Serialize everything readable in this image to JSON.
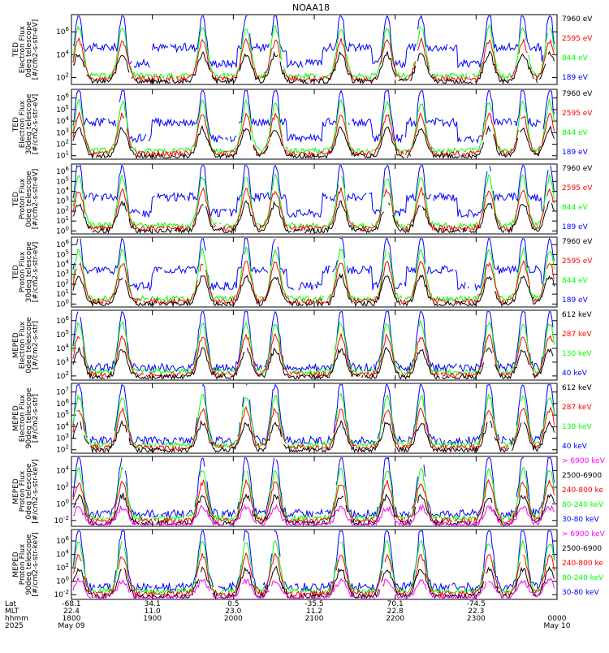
{
  "title": "NOAA18",
  "colors": {
    "black": "#000000",
    "red": "#ff0000",
    "green": "#00ff00",
    "blue": "#0000ff",
    "magenta": "#ff00ff"
  },
  "chart_data": [
    {
      "type": "line",
      "ylabel": [
        "TED",
        "Electron Flux",
        "0deg telescope",
        "[#/cm2-s-str-eV]"
      ],
      "yscale": "log",
      "ytick_labels": [
        "10^2",
        "10^4",
        "10^6"
      ],
      "legend": [
        "7960 eV",
        "2595 eV",
        "844 eV",
        "189 eV"
      ],
      "legend_colors": [
        "#000000",
        "#ff0000",
        "#00ff00",
        "#0000ff"
      ]
    },
    {
      "type": "line",
      "ylabel": [
        "TED",
        "Electron Flux",
        "30deg telescope",
        "[#/cm2-s-str-eV]"
      ],
      "yscale": "log",
      "ytick_labels": [
        "10^1",
        "10^2",
        "10^3",
        "10^4",
        "10^5",
        "10^6"
      ],
      "legend": [
        "7960 eV",
        "2595 eV",
        "844 eV",
        "189 eV"
      ],
      "legend_colors": [
        "#000000",
        "#ff0000",
        "#00ff00",
        "#0000ff"
      ]
    },
    {
      "type": "line",
      "ylabel": [
        "TED",
        "Proton Flux",
        "0deg telescope",
        "[#/cm2-s-str-eV]"
      ],
      "yscale": "log",
      "ytick_labels": [
        "10^0",
        "10^1",
        "10^2",
        "10^3",
        "10^4",
        "10^5",
        "10^6"
      ],
      "legend": [
        "7960 eV",
        "2595 eV",
        "844 eV",
        "189 eV"
      ],
      "legend_colors": [
        "#000000",
        "#ff0000",
        "#00ff00",
        "#0000ff"
      ]
    },
    {
      "type": "line",
      "ylabel": [
        "TED",
        "Proton Flux",
        "30deg telescope",
        "[#/cm2-s-str-eV]"
      ],
      "yscale": "log",
      "ytick_labels": [
        "10^0",
        "10^1",
        "10^2",
        "10^3",
        "10^4",
        "10^5",
        "10^6"
      ],
      "legend": [
        "7960 eV",
        "2595 eV",
        "844 eV",
        "189 eV"
      ],
      "legend_colors": [
        "#000000",
        "#ff0000",
        "#00ff00",
        "#0000ff"
      ]
    },
    {
      "type": "line",
      "ylabel": [
        "MEPED",
        "Electron Flux",
        "0deg telescope",
        "[#/cm2-s-str]"
      ],
      "yscale": "log",
      "ytick_labels": [
        "10^2",
        "10^3",
        "10^4",
        "10^5",
        "10^6"
      ],
      "legend": [
        "612 keV",
        "287 keV",
        "130 keV",
        "40 keV"
      ],
      "legend_colors": [
        "#000000",
        "#ff0000",
        "#00ff00",
        "#0000ff"
      ]
    },
    {
      "type": "line",
      "ylabel": [
        "MEPED",
        "Electron Flux",
        "90deg telescope",
        "[#/cm2-s-str]"
      ],
      "yscale": "log",
      "ytick_labels": [
        "10^2",
        "10^3",
        "10^4",
        "10^5",
        "10^6",
        "10^7"
      ],
      "legend": [
        "612 keV",
        "287 keV",
        "130 keV",
        "40 keV"
      ],
      "legend_colors": [
        "#000000",
        "#ff0000",
        "#00ff00",
        "#0000ff"
      ]
    },
    {
      "type": "line",
      "ylabel": [
        "MEPED",
        "Proton Flux",
        "0deg telescope",
        "[#/cm2-s-str-keV]"
      ],
      "yscale": "log",
      "ytick_labels": [
        "10^-2",
        "10^0",
        "10^2",
        "10^4"
      ],
      "legend": [
        "> 6900 keV",
        "2500-6900",
        "240-800 ke",
        "80-240 keV",
        "30-80 keV"
      ],
      "legend_colors": [
        "#ff00ff",
        "#000000",
        "#ff0000",
        "#00ff00",
        "#0000ff"
      ]
    },
    {
      "type": "line",
      "ylabel": [
        "MEPED",
        "Proton Flux",
        "90deg telescope",
        "[#/cm2-s-str-keV]"
      ],
      "yscale": "log",
      "ytick_labels": [
        "10^-2",
        "10^0",
        "10^2",
        "10^4",
        "10^6"
      ],
      "legend": [
        "> 6900 keV",
        "2500-6900",
        "240-800 ke",
        "80-240 keV",
        "30-80 keV"
      ],
      "legend_colors": [
        "#ff00ff",
        "#000000",
        "#ff0000",
        "#00ff00",
        "#0000ff"
      ]
    }
  ],
  "x_axis": {
    "row_labels": [
      "Lat",
      "MLT",
      "hhmm",
      "2025"
    ],
    "lat": [
      "-68.1",
      "34.1",
      "0.5",
      "-35.5",
      "70.1",
      "-74.5"
    ],
    "mlt": [
      "22.4",
      "11.0",
      "23.0",
      "11.2",
      "22.8",
      "22.3"
    ],
    "hhmm": [
      "1800",
      "1900",
      "2000",
      "2100",
      "2200",
      "2300",
      "0000"
    ],
    "dates": [
      "May 09",
      "May 10"
    ]
  }
}
